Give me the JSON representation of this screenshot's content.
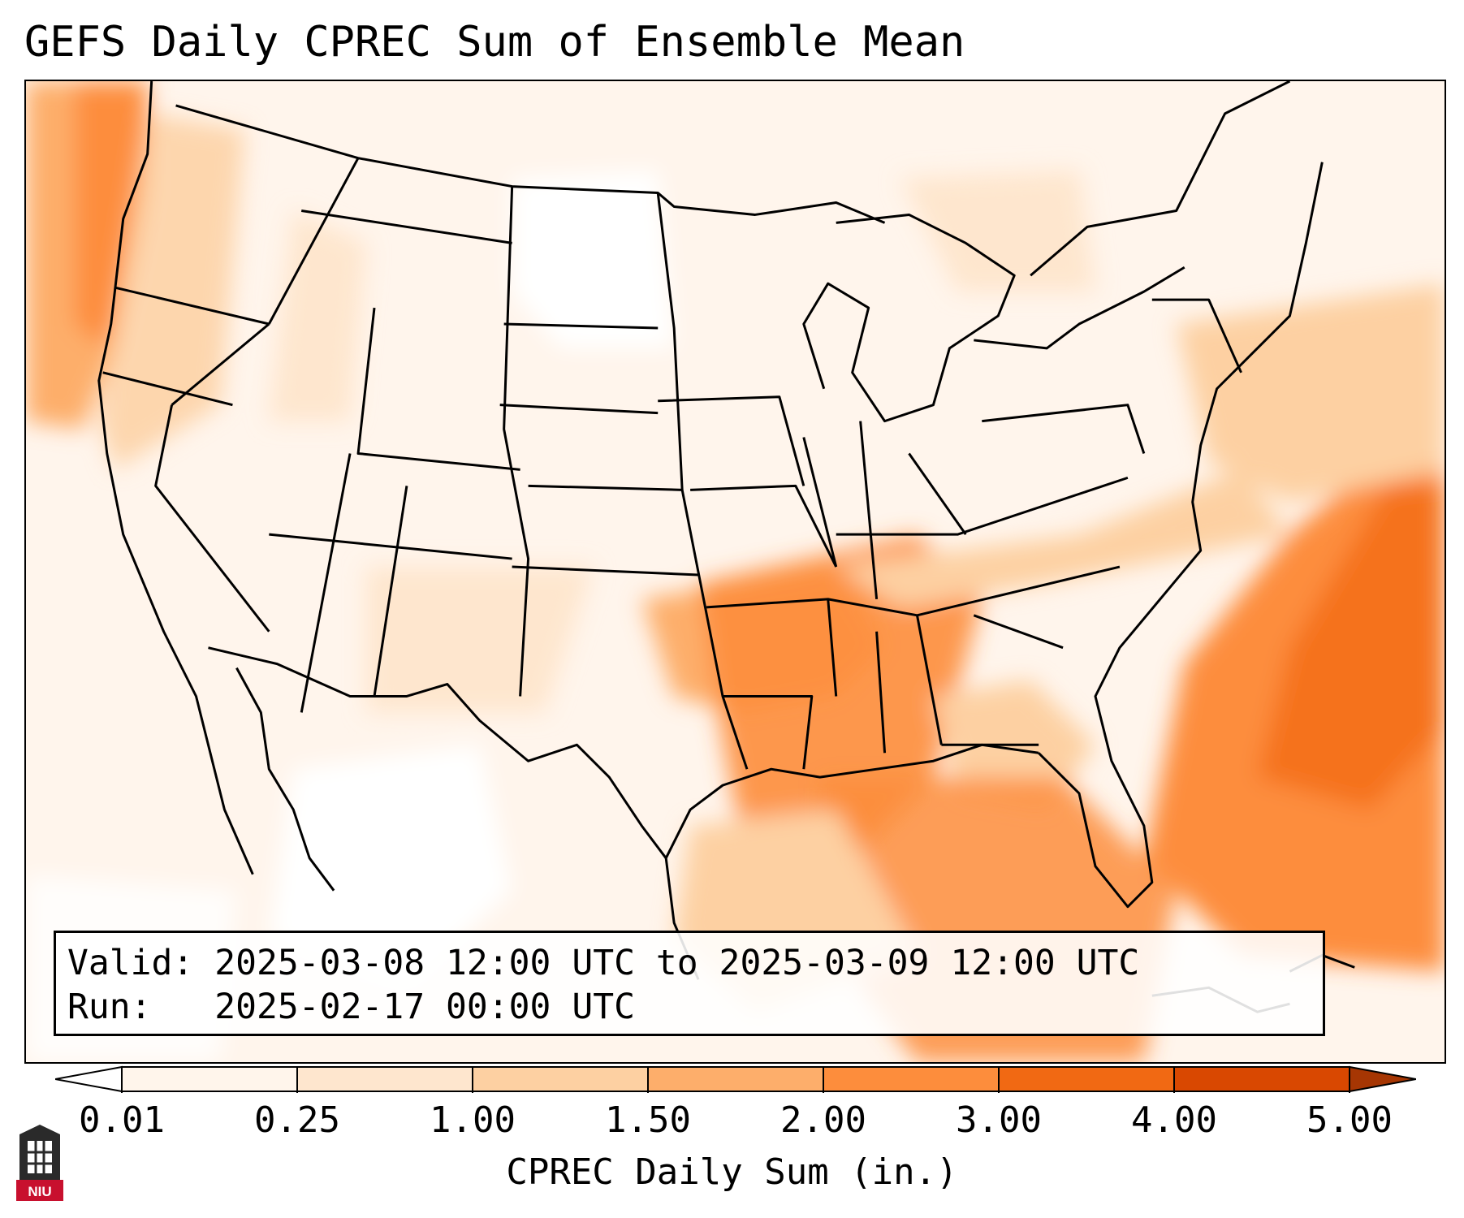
{
  "title": "GEFS Daily CPREC Sum of Ensemble Mean",
  "info": {
    "valid_label": "Valid:",
    "valid_value": "2025-03-08 12:00 UTC to 2025-03-09 12:00 UTC",
    "run_label": "Run:",
    "run_value": "2025-02-17 00:00 UTC"
  },
  "colorbar": {
    "label": "CPREC Daily Sum (in.)",
    "ticks": [
      "0.01",
      "0.25",
      "1.00",
      "1.50",
      "2.00",
      "3.00",
      "4.00",
      "5.00"
    ],
    "colors": [
      "#fff5eb",
      "#fee6ce",
      "#fdd0a2",
      "#fdae6b",
      "#fd8d3c",
      "#f16913",
      "#d94801",
      "#a63603"
    ],
    "under_color": "#ffffff",
    "over_color": "#a63603",
    "extend": "both"
  },
  "logo": {
    "text": "NIU",
    "icon": "university-logo-icon",
    "color": "#c8102e"
  },
  "map": {
    "region": "Continental United States",
    "basemap": "state-borders"
  }
}
